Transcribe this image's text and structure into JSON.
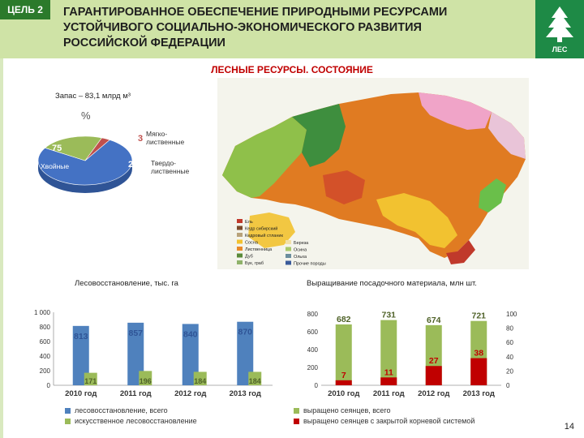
{
  "header": {
    "goal_badge": "ЦЕЛЬ 2",
    "title_lines": [
      "ГАРАНТИРОВАННОЕ ОБЕСПЕЧЕНИЕ ПРИРОДНЫМИ РЕСУРСАМИ",
      "УСТОЙЧИВОГО СОЦИАЛЬНО-ЭКОНОМИЧЕСКОГО РАЗВИТИЯ",
      "РОССИЙСКОЙ ФЕДЕРАЦИИ"
    ],
    "logo_text": "ЛЕС",
    "logo_icon": "fir-tree-icon"
  },
  "section_title": "ЛЕСНЫЕ РЕСУРСЫ. СОСТОЯНИЕ",
  "stock": {
    "title": "Запас – 83,1 млрд м³",
    "unit": "%"
  },
  "map": {
    "legend_left": [
      "Ель",
      "Кедр сибирский",
      "Кедровый стланик",
      "Сосна",
      "Лиственница",
      "Дуб",
      "Бук, граб"
    ],
    "legend_right": [
      "Береза",
      "Осина",
      "Ольха",
      "Прочие породы"
    ],
    "legend_left_colors": [
      "#c0392b",
      "#7b4a2a",
      "#b8a27a",
      "#f2c230",
      "#e8892a",
      "#5a8a3a",
      "#8fb26a"
    ],
    "legend_right_colors": [
      "#f2e0a8",
      "#a9c96a",
      "#6b8e9e",
      "#3a5b9a"
    ]
  },
  "page_number": "14",
  "chart_data": [
    {
      "type": "pie",
      "categories": [
        "Хвойные",
        "Твердолиственные",
        "Мягколиственные"
      ],
      "label_lines": [
        [
          "Хвойные"
        ],
        [
          "Твердо-",
          "лиственные"
        ],
        [
          "Мягко-",
          "лиственные"
        ]
      ],
      "values": [
        75,
        22,
        3
      ],
      "colors": [
        "#4472c4",
        "#9bbb59",
        "#c0504d"
      ]
    },
    {
      "type": "bar",
      "title": "Лесовосстановление, тыс. га",
      "categories": [
        "2010 год",
        "2011 год",
        "2012 год",
        "2013 год"
      ],
      "series": [
        {
          "name": "лесовосстановление, всего",
          "values": [
            813,
            857,
            840,
            870
          ],
          "color": "#4f81bd"
        },
        {
          "name": "искусственное лесовосстановление",
          "values": [
            171,
            196,
            184,
            184
          ],
          "color": "#9bbb59"
        }
      ],
      "ylim": [
        0,
        1000
      ],
      "yticks": [
        "0",
        "200",
        "400",
        "600",
        "800",
        "1 000"
      ]
    },
    {
      "type": "bar",
      "title": "Выращивание посадочного материала, млн шт.",
      "categories": [
        "2010 год",
        "2011 год",
        "2012 год",
        "2013 год"
      ],
      "series": [
        {
          "name": "выращено сеянцев, всего",
          "values": [
            682,
            731,
            674,
            721
          ],
          "color": "#9bbb59",
          "axis": "left"
        },
        {
          "name": "выращено сеянцев с закрытой корневой системой",
          "values": [
            7,
            11,
            27,
            38
          ],
          "color": "#c00000",
          "axis": "right"
        }
      ],
      "ylim_left": [
        0,
        800
      ],
      "ylim_right": [
        0,
        100
      ],
      "yticks_left": [
        "0",
        "200",
        "400",
        "600",
        "800"
      ],
      "yticks_right": [
        "0",
        "20",
        "40",
        "60",
        "80",
        "100"
      ]
    }
  ]
}
